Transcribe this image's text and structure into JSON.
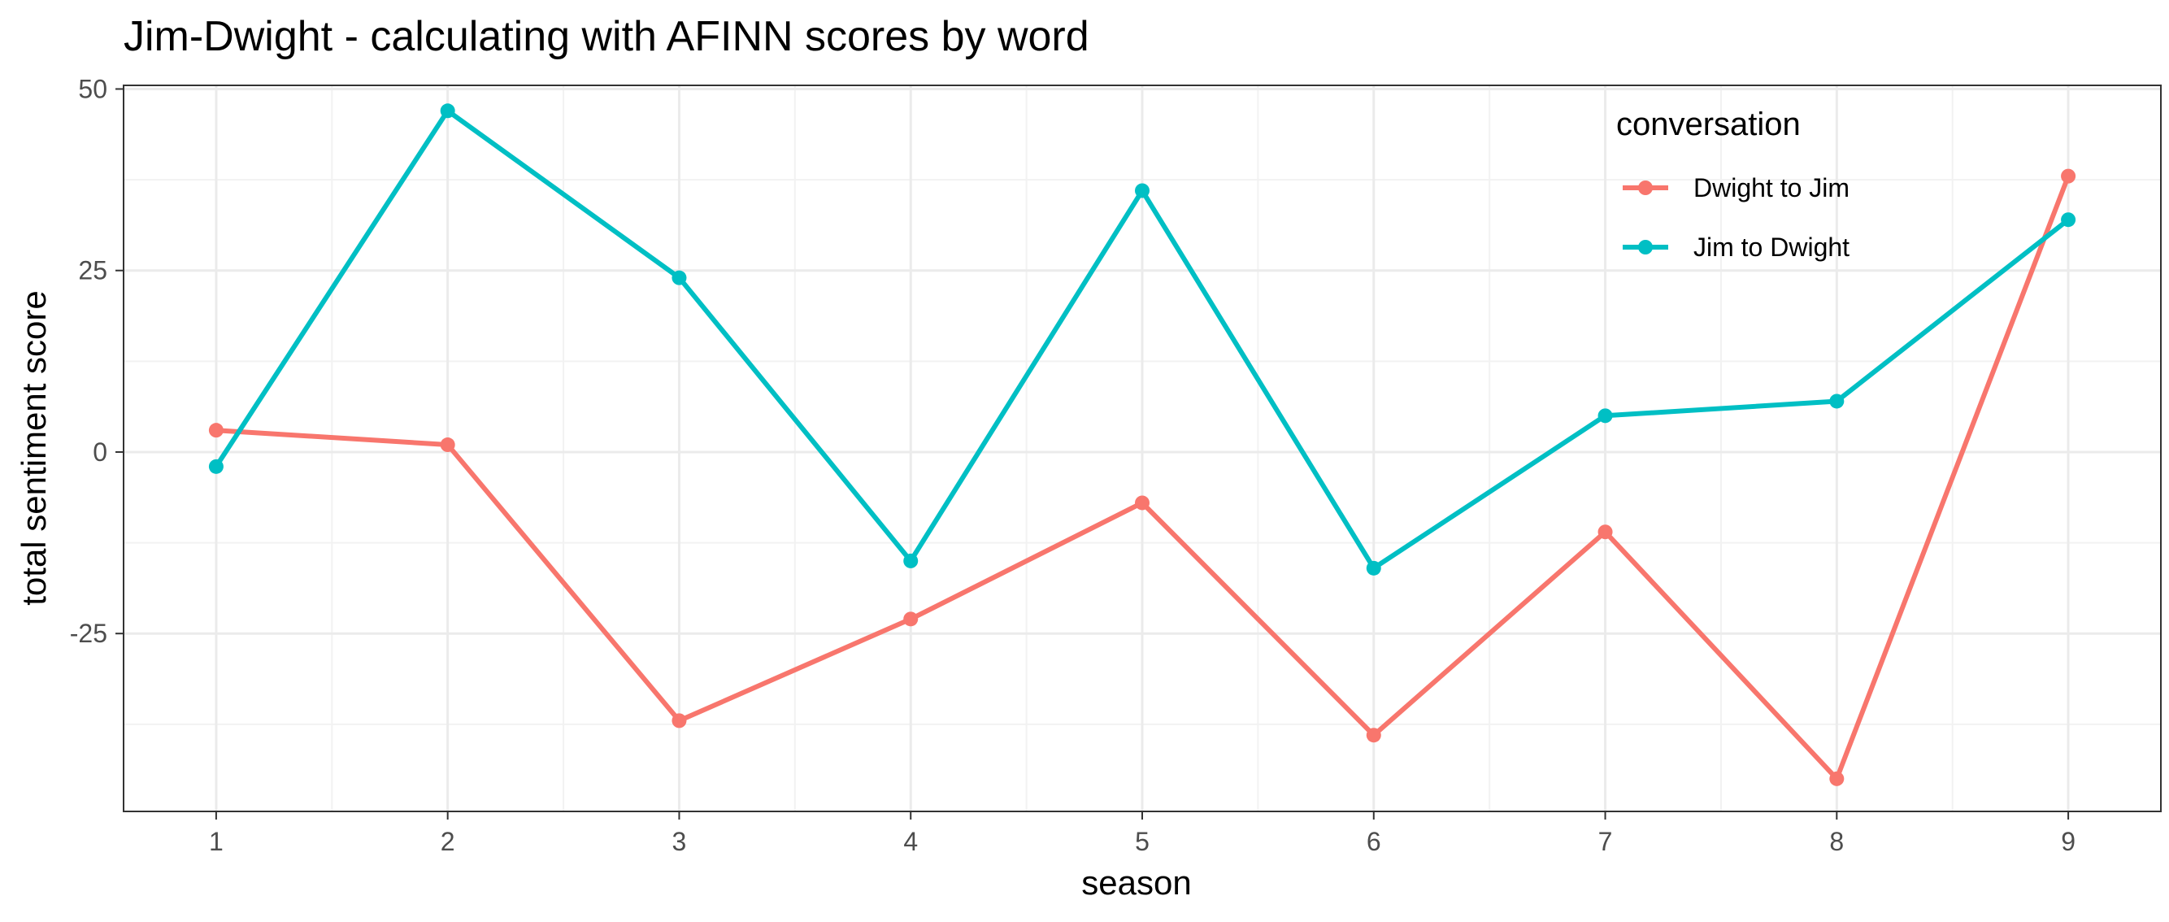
{
  "chart_data": {
    "type": "line",
    "title": "Jim-Dwight - calculating with AFINN scores by word",
    "xlabel": "season",
    "ylabel": "total sentiment score",
    "x": [
      1,
      2,
      3,
      4,
      5,
      6,
      7,
      8,
      9
    ],
    "x_ticks": [
      "1",
      "2",
      "3",
      "4",
      "5",
      "6",
      "7",
      "8",
      "9"
    ],
    "xlim": [
      0.6,
      9.4
    ],
    "y_ticks": [
      -25,
      0,
      25,
      50
    ],
    "y_tick_labels": [
      "-25",
      "0",
      "25",
      "50"
    ],
    "ylim": [
      -49.5,
      50.5
    ],
    "grid": true,
    "legend": {
      "title": "conversation",
      "placement": "top-right inside plot"
    },
    "series": [
      {
        "name": "Dwight to Jim",
        "color": "#F8766D",
        "values": [
          3,
          1,
          -37,
          -23,
          -7,
          -39,
          -11,
          -45,
          38
        ]
      },
      {
        "name": "Jim to Dwight",
        "color": "#00BFC4",
        "values": [
          -2,
          47,
          24,
          -15,
          36,
          -16,
          5,
          7,
          32
        ]
      }
    ]
  }
}
